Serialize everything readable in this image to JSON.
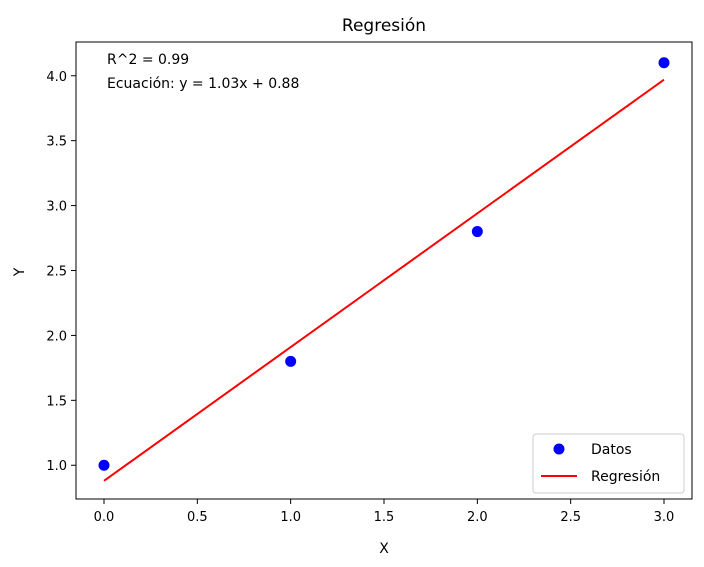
{
  "chart_data": {
    "type": "scatter",
    "title": "Regresión",
    "xlabel": "X",
    "ylabel": "Y",
    "xlim": [
      -0.15,
      3.15
    ],
    "ylim": [
      0.74,
      4.26
    ],
    "xticks": [
      0.0,
      0.5,
      1.0,
      1.5,
      2.0,
      2.5,
      3.0
    ],
    "xtick_labels": [
      "0.0",
      "0.5",
      "1.0",
      "1.5",
      "2.0",
      "2.5",
      "3.0"
    ],
    "yticks": [
      1.0,
      1.5,
      2.0,
      2.5,
      3.0,
      3.5,
      4.0
    ],
    "ytick_labels": [
      "1.0",
      "1.5",
      "2.0",
      "2.5",
      "3.0",
      "3.5",
      "4.0"
    ],
    "grid": false,
    "legend_position": "lower-right",
    "series": [
      {
        "name": "Datos",
        "type": "scatter",
        "color": "#0000ff",
        "x": [
          0,
          1,
          2,
          3
        ],
        "y": [
          1.0,
          1.8,
          2.8,
          4.1
        ]
      },
      {
        "name": "Regresión",
        "type": "line",
        "color": "#ff0000",
        "x": [
          0,
          3
        ],
        "y": [
          0.88,
          3.97
        ]
      }
    ],
    "annotations": [
      "R^2 = 0.99",
      "Ecuación: y = 1.03x + 0.88"
    ]
  }
}
